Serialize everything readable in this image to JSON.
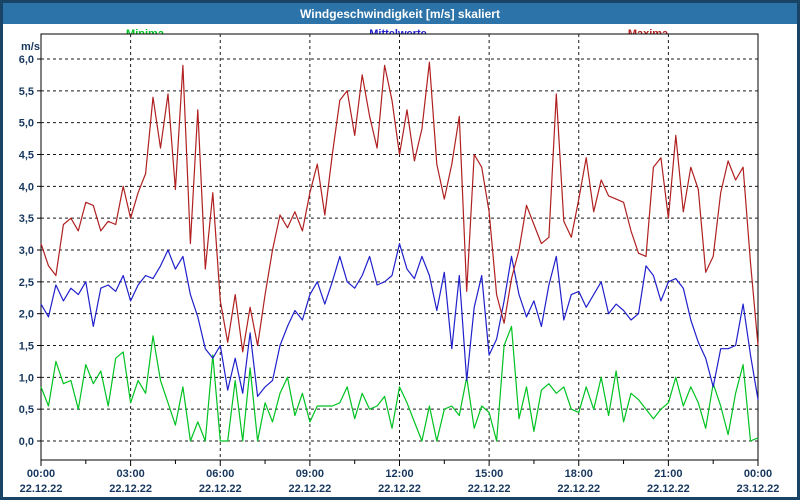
{
  "window": {
    "title": "Windgeschwindigkeit [m/s] skaliert"
  },
  "colors": {
    "titlebar_bg": "#2B73A8",
    "titlebar_text": "#FFFFFF",
    "frame_border": "#1A4465",
    "plot_bg": "#FFFFFF",
    "plot_border": "#000000",
    "grid": "#1A1A1A",
    "axis_text": "#17375E",
    "minima": "#00C221",
    "mittelwerte": "#2020CC",
    "maxima": "#B02020"
  },
  "chart_data": {
    "type": "line",
    "title": "Windgeschwindigkeit [m/s] skaliert",
    "ylabel": "m/s",
    "xlabel": "",
    "ylim": [
      0.0,
      6.0
    ],
    "xlim_hours": [
      0,
      24
    ],
    "grid": "dashed",
    "legend_position": "top",
    "sample_interval_hours": 0.25,
    "y_ticks": [
      {
        "value": 0.0,
        "label": "0,0"
      },
      {
        "value": 0.5,
        "label": "0,5"
      },
      {
        "value": 1.0,
        "label": "1,0"
      },
      {
        "value": 1.5,
        "label": "1,5"
      },
      {
        "value": 2.0,
        "label": "2,0"
      },
      {
        "value": 2.5,
        "label": "2,5"
      },
      {
        "value": 3.0,
        "label": "3,0"
      },
      {
        "value": 3.5,
        "label": "3,5"
      },
      {
        "value": 4.0,
        "label": "4,0"
      },
      {
        "value": 4.5,
        "label": "4,5"
      },
      {
        "value": 5.0,
        "label": "5,0"
      },
      {
        "value": 5.5,
        "label": "5,5"
      },
      {
        "value": 6.0,
        "label": "6,0"
      }
    ],
    "x_ticks": [
      {
        "hour": 0,
        "time": "00:00",
        "date": "22.12.22"
      },
      {
        "hour": 3,
        "time": "03:00",
        "date": "22.12.22"
      },
      {
        "hour": 6,
        "time": "06:00",
        "date": "22.12.22"
      },
      {
        "hour": 9,
        "time": "09:00",
        "date": "22.12.22"
      },
      {
        "hour": 12,
        "time": "12:00",
        "date": "22.12.22"
      },
      {
        "hour": 15,
        "time": "15:00",
        "date": "22.12.22"
      },
      {
        "hour": 18,
        "time": "18:00",
        "date": "22.12.22"
      },
      {
        "hour": 21,
        "time": "21:00",
        "date": "22.12.22"
      },
      {
        "hour": 24,
        "time": "00:00",
        "date": "23.12.22"
      }
    ],
    "minor_x_tick_interval_hours": 1.5,
    "series": [
      {
        "name": "Minima",
        "color_key": "minima",
        "values": [
          0.85,
          0.55,
          1.25,
          0.9,
          0.95,
          0.5,
          1.2,
          0.9,
          1.1,
          0.55,
          1.3,
          1.4,
          0.6,
          0.95,
          0.75,
          1.65,
          0.95,
          0.6,
          0.25,
          0.85,
          0.0,
          0.3,
          0.0,
          1.35,
          0.0,
          0.0,
          0.95,
          0.0,
          1.15,
          0.0,
          0.6,
          0.3,
          0.75,
          1.0,
          0.4,
          0.75,
          0.3,
          0.55,
          0.55,
          0.55,
          0.6,
          0.85,
          0.35,
          0.75,
          0.5,
          0.55,
          0.7,
          0.2,
          0.85,
          0.6,
          0.3,
          0.0,
          0.55,
          0.0,
          0.5,
          0.55,
          0.4,
          1.0,
          0.2,
          0.55,
          0.45,
          0.0,
          1.5,
          1.8,
          0.35,
          0.85,
          0.15,
          0.8,
          0.9,
          0.75,
          0.85,
          0.5,
          0.45,
          0.85,
          0.5,
          1.0,
          0.4,
          1.1,
          0.3,
          0.75,
          0.65,
          0.5,
          0.35,
          0.5,
          0.6,
          1.0,
          0.55,
          0.85,
          0.6,
          0.2,
          0.9,
          0.55,
          0.1,
          0.75,
          1.2,
          0.0,
          0.05
        ]
      },
      {
        "name": "Mittelwerte",
        "color_key": "mittelwerte",
        "values": [
          2.15,
          1.95,
          2.45,
          2.2,
          2.4,
          2.3,
          2.5,
          1.8,
          2.4,
          2.45,
          2.35,
          2.6,
          2.2,
          2.45,
          2.6,
          2.55,
          2.75,
          3.0,
          2.7,
          2.9,
          2.3,
          1.95,
          1.45,
          1.3,
          1.5,
          0.8,
          1.3,
          0.75,
          1.7,
          0.7,
          0.85,
          0.95,
          1.5,
          1.8,
          2.05,
          1.9,
          2.3,
          2.5,
          2.15,
          2.5,
          2.9,
          2.5,
          2.4,
          2.6,
          2.9,
          2.45,
          2.5,
          2.6,
          3.1,
          2.7,
          2.55,
          2.9,
          2.6,
          2.05,
          2.65,
          1.45,
          2.6,
          0.95,
          2.1,
          2.6,
          1.35,
          1.6,
          2.2,
          2.9,
          2.3,
          1.95,
          2.2,
          1.8,
          2.45,
          2.9,
          1.9,
          2.3,
          2.35,
          2.1,
          2.3,
          2.5,
          2.0,
          2.15,
          2.05,
          1.9,
          2.0,
          2.75,
          2.6,
          2.2,
          2.5,
          2.55,
          2.4,
          1.9,
          1.55,
          1.3,
          0.85,
          1.45,
          1.45,
          1.5,
          2.15,
          1.35,
          0.65
        ]
      },
      {
        "name": "Maxima",
        "color_key": "maxima",
        "values": [
          3.1,
          2.75,
          2.6,
          3.4,
          3.5,
          3.3,
          3.75,
          3.7,
          3.3,
          3.45,
          3.4,
          4.0,
          3.5,
          3.9,
          4.2,
          5.4,
          4.6,
          5.45,
          3.95,
          5.9,
          3.1,
          5.2,
          2.7,
          3.9,
          2.2,
          1.55,
          2.3,
          1.4,
          2.1,
          1.5,
          2.3,
          3.0,
          3.55,
          3.35,
          3.6,
          3.3,
          3.9,
          4.35,
          3.55,
          4.5,
          5.35,
          5.5,
          4.8,
          5.75,
          5.1,
          4.6,
          5.9,
          5.35,
          4.5,
          5.2,
          4.4,
          4.9,
          5.95,
          4.35,
          3.8,
          4.35,
          5.1,
          2.35,
          4.5,
          4.3,
          3.6,
          2.3,
          1.85,
          2.55,
          3.0,
          3.7,
          3.4,
          3.1,
          3.2,
          5.45,
          3.45,
          3.2,
          3.8,
          4.45,
          3.6,
          4.1,
          3.85,
          3.8,
          3.75,
          3.3,
          2.95,
          2.9,
          4.3,
          4.45,
          3.5,
          4.8,
          3.6,
          4.3,
          3.95,
          2.65,
          2.9,
          3.9,
          4.4,
          4.1,
          4.3,
          2.8,
          1.5
        ]
      }
    ]
  }
}
